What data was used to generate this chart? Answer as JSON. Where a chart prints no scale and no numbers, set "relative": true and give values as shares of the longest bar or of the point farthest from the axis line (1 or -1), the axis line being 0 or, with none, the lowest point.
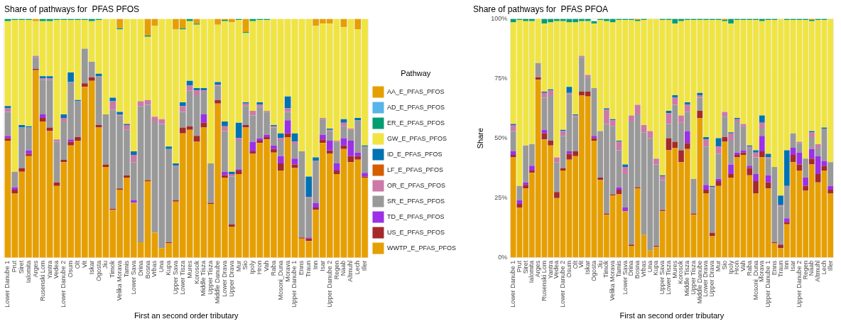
{
  "chart_data": [
    {
      "type": "bar",
      "stacked": true,
      "relative": true,
      "title": "Share of pathways for  PFAS PFOS",
      "xlabel": "First an second order tributary",
      "legend_title": "Pathway",
      "legend": "right",
      "grid": true,
      "categories": [
        "Lower Danube 1",
        "Prut",
        "Siret",
        "Ialomita",
        "Arges",
        "Rusenski Lom",
        "Yantra",
        "Vedea",
        "Lower Danube 2",
        "Osum",
        "Olt",
        "Vit",
        "Iskar",
        "Ogosta",
        "Jiu",
        "Timok",
        "Velika Morava",
        "Tamis",
        "Lower Sava",
        "Drina",
        "Bosna",
        "Vrbas",
        "Una",
        "Kupa",
        "Upper Sava",
        "Lower Tisza",
        "Mures",
        "Korosok",
        "Middle Tisza",
        "Upper Tisza",
        "Middle Danube",
        "Lower Drava",
        "Upper Drava",
        "Mur",
        "Sio",
        "Ipoly",
        "Hron",
        "Vah",
        "Raba",
        "Mosoni_Duna",
        "Morava",
        "Upper Danube 1",
        "Enns",
        "Traun",
        "Inn",
        "Isar",
        "Upper Danube 2",
        "Regen",
        "Naab",
        "Altmuhl",
        "Lech",
        "Iller"
      ],
      "series": [
        {
          "name": "WWTP_E_PFAS_PFOS",
          "color": "#e69f00",
          "values": [
            0.49,
            0.27,
            0.36,
            0.425,
            0.785,
            0.57,
            0.53,
            0.3,
            0.4,
            0.47,
            0.49,
            0.715,
            0.74,
            0.545,
            0.38,
            0.2,
            0.285,
            0.335,
            0.23,
            0.065,
            0.32,
            0.105,
            0.04,
            0.06,
            0.235,
            0.52,
            0.535,
            0.485,
            0.545,
            0.225,
            0.645,
            0.335,
            0.13,
            0.35,
            0.545,
            0.435,
            0.48,
            0.495,
            0.44,
            0.365,
            0.505,
            0.375,
            0.08,
            0.07,
            0.2,
            0.48,
            0.435,
            0.35,
            0.455,
            0.4,
            0.41,
            0.335
          ]
        },
        {
          "name": "US_E_PFAS_PFOS",
          "color": "#a52a2a",
          "values": [
            0.01,
            0.015,
            0.015,
            0.01,
            0.005,
            0.015,
            0.015,
            0.015,
            0.01,
            0.015,
            0.015,
            0.015,
            0.015,
            0.01,
            0.01,
            0.005,
            0.005,
            0.01,
            0,
            0,
            0.005,
            0,
            0,
            0.005,
            0.005,
            0.025,
            0.015,
            0.025,
            0.02,
            0.005,
            0.015,
            0.01,
            0.01,
            0.015,
            0.01,
            0.01,
            0.01,
            0.01,
            0.015,
            0.03,
            0.015,
            0.015,
            0.005,
            0.01,
            0.01,
            0.015,
            0.015,
            0.015,
            0.015,
            0.025,
            0.015,
            0.005
          ]
        },
        {
          "name": "TD_E_PFAS_PFOS",
          "color": "#9b30e6",
          "values": [
            0.01,
            0.01,
            0,
            0.015,
            0,
            0.015,
            0,
            0,
            0,
            0.01,
            0,
            0,
            0,
            0,
            0,
            0,
            0,
            0,
            0.01,
            0,
            0,
            0,
            0,
            0,
            0,
            0,
            0,
            0,
            0.035,
            0,
            0,
            0.015,
            0,
            0.005,
            0,
            0.04,
            0.01,
            0.01,
            0.015,
            0.03,
            0.055,
            0.025,
            0,
            0.005,
            0.02,
            0.02,
            0.04,
            0.03,
            0.03,
            0.065,
            0.015,
            0.015
          ]
        },
        {
          "name": "SR_E_PFAS_PFOS",
          "color": "#999999",
          "values": [
            0.1,
            0.065,
            0.17,
            0.095,
            0.05,
            0.145,
            0.2,
            0.17,
            0.16,
            0.24,
            0.15,
            0.145,
            0.065,
            0.205,
            0.21,
            0.415,
            0.305,
            0.19,
            0.16,
            0.57,
            0.315,
            0.465,
            0.52,
            0.39,
            0.145,
            0.065,
            0.15,
            0.17,
            0.095,
            0.165,
            0.06,
            0.17,
            0.2,
            0.12,
            0.08,
            0.11,
            0.13,
            0.095,
            0.075,
            0.065,
            0.035,
            0.06,
            0.36,
            0.165,
            0.175,
            0.065,
            0.04,
            0.09,
            0.05,
            0.045,
            0.135,
            0.11
          ]
        },
        {
          "name": "OR_E_PFAS_PFOS",
          "color": "#cc79a7",
          "values": [
            0.015,
            0,
            0,
            0,
            0.005,
            0.005,
            0.005,
            0.01,
            0.015,
            0,
            0,
            0,
            0,
            0,
            0,
            0.035,
            0.005,
            0.02,
            0.03,
            0.02,
            0.02,
            0.02,
            0.02,
            0,
            0,
            0.025,
            0.02,
            0.02,
            0.005,
            0,
            0.005,
            0.02,
            0.01,
            0.01,
            0.01,
            0.02,
            0.01,
            0.005,
            0.005,
            0.01,
            0.015,
            0.01,
            0,
            0.005,
            0,
            0.005,
            0.005,
            0.005,
            0.015,
            0.005,
            0,
            0
          ]
        },
        {
          "name": "LF_E_PFAS_PFOS",
          "color": "#d55e00",
          "values": [
            0,
            0,
            0,
            0,
            0,
            0,
            0,
            0,
            0,
            0,
            0,
            0,
            0,
            0,
            0,
            0,
            0,
            0,
            0,
            0,
            0,
            0,
            0,
            0,
            0,
            0,
            0,
            0,
            0,
            0,
            0,
            0,
            0,
            0,
            0,
            0,
            0,
            0,
            0,
            0,
            0,
            0,
            0,
            0,
            0,
            0,
            0,
            0,
            0,
            0,
            0,
            0
          ]
        },
        {
          "name": "ID_E_PFAS_PFOS",
          "color": "#0072b2",
          "values": [
            0.01,
            0,
            0.01,
            0.005,
            0,
            0.01,
            0.01,
            0,
            0.015,
            0.04,
            0.005,
            0,
            0,
            0.01,
            0,
            0.015,
            0.01,
            0.005,
            0.015,
            0,
            0,
            0,
            0,
            0.01,
            0.01,
            0.015,
            0.02,
            0.01,
            0.01,
            0,
            0.01,
            0.02,
            0.01,
            0.065,
            0.005,
            0,
            0.01,
            0,
            0.005,
            0.02,
            0.05,
            0.035,
            0,
            0.085,
            0.015,
            0,
            0.005,
            0,
            0.015,
            0,
            0.01,
            0.005
          ]
        },
        {
          "name": "GW_E_PFAS_PFOS",
          "color": "#f0e442",
          "values": [
            0.355,
            0.635,
            0.44,
            0.445,
            0.145,
            0.23,
            0.23,
            0.5,
            0.395,
            0.22,
            0.335,
            0.12,
            0.17,
            0.225,
            0.4,
            0.33,
            0.345,
            0.44,
            0.555,
            0.345,
            0.265,
            0.38,
            0.42,
            0.535,
            0.56,
            0.305,
            0.25,
            0.265,
            0.29,
            0.605,
            0.24,
            0.42,
            0.625,
            0.43,
            0.29,
            0.375,
            0.345,
            0.38,
            0.445,
            0.48,
            0.325,
            0.48,
            0.555,
            0.66,
            0.55,
            0.395,
            0.44,
            0.51,
            0.385,
            0.46,
            0.37,
            0.53
          ]
        },
        {
          "name": "ER_E_PFAS_PFOS",
          "color": "#009e73",
          "values": [
            0.01,
            0.005,
            0.005,
            0.005,
            0,
            0.01,
            0.01,
            0.005,
            0.005,
            0.005,
            0.005,
            0.005,
            0.01,
            0.005,
            0,
            0,
            0.005,
            0,
            0,
            0,
            0.005,
            0,
            0,
            0,
            0,
            0.005,
            0.01,
            0.005,
            0,
            0,
            0,
            0.005,
            0,
            0.005,
            0.005,
            0.01,
            0.005,
            0.005,
            0,
            0,
            0,
            0,
            0,
            0,
            0,
            0,
            0,
            0,
            0,
            0,
            0,
            0
          ]
        },
        {
          "name": "AD_E_PFAS_PFOS",
          "color": "#56b4e9",
          "values": [
            0,
            0,
            0,
            0,
            0,
            0,
            0,
            0,
            0,
            0,
            0,
            0,
            0,
            0,
            0,
            0,
            0,
            0,
            0,
            0,
            0,
            0,
            0,
            0,
            0,
            0,
            0,
            0,
            0,
            0,
            0,
            0,
            0,
            0,
            0,
            0,
            0,
            0,
            0,
            0,
            0,
            0,
            0,
            0,
            0,
            0,
            0,
            0,
            0,
            0,
            0,
            0
          ]
        },
        {
          "name": "AA_E_PFAS_PFOS",
          "color": "#e69f00",
          "values": [
            0,
            0,
            0,
            0,
            0.01,
            0,
            0,
            0,
            0,
            0,
            0,
            0,
            0,
            0,
            0,
            0,
            0.04,
            0,
            0,
            0,
            0.07,
            0.03,
            0,
            0,
            0.045,
            0.04,
            0,
            0.02,
            0,
            0,
            0.025,
            0.005,
            0.015,
            0,
            0.055,
            0,
            0,
            0,
            0,
            0,
            0,
            0,
            0,
            0,
            0.03,
            0.02,
            0.02,
            0,
            0.035,
            0,
            0.045,
            0
          ]
        }
      ]
    },
    {
      "type": "bar",
      "stacked": true,
      "title": "Share of pathways for  PFAS PFOA",
      "xlabel": "First an second order tributary",
      "ylabel": "Share",
      "grid": true,
      "ylim": [
        0,
        100
      ],
      "yticks": [
        {
          "value": 0,
          "label": "0%"
        },
        {
          "value": 25,
          "label": "25%"
        },
        {
          "value": 50,
          "label": "50%"
        },
        {
          "value": 75,
          "label": "75%"
        },
        {
          "value": 100,
          "label": "100%"
        }
      ],
      "categories": [
        "Lower Danube 1",
        "Prut",
        "Siret",
        "Ialomita",
        "Arges",
        "Rusenski Lom",
        "Yantra",
        "Vedea",
        "Lower Danube 2",
        "Osum",
        "Olt",
        "Vit",
        "Iskar",
        "Ogosta",
        "Jiu",
        "Timok",
        "Velika Morava",
        "Tamis",
        "Lower Sava",
        "Drina",
        "Bosna",
        "Vrbas",
        "Una",
        "Kupa",
        "Upper Sava",
        "Lower Tisza",
        "Mures",
        "Korosok",
        "Middle Tisza",
        "Upper Tisza",
        "Middle Danube",
        "Lower Drava",
        "Upper Drava",
        "Mur",
        "Sio",
        "Ipoly",
        "Hron",
        "Vah",
        "Raba",
        "Mosoni_Duna",
        "Morava",
        "Upper Danube 1",
        "Enns",
        "Traun",
        "Inn",
        "Isar",
        "Upper Danube 2",
        "Regen",
        "Naab",
        "Altmuhl",
        "Lech",
        "Iller"
      ],
      "series": [
        {
          "color": "#e69f00",
          "values": [
            42,
            21,
            29,
            35.5,
            74.5,
            49.5,
            47,
            25,
            36.5,
            41,
            42.5,
            68,
            67.5,
            49,
            32.5,
            18,
            26,
            26.5,
            19.5,
            5,
            29,
            9.5,
            3,
            4.5,
            19.5,
            45,
            46,
            40,
            45.5,
            18,
            58.5,
            27,
            9,
            30,
            48.5,
            33.5,
            42,
            43,
            34.5,
            27,
            42,
            29,
            6,
            4,
            14,
            40,
            36.5,
            28,
            39,
            31.5,
            36.5,
            27
          ]
        },
        {
          "color": "#a52a2a",
          "values": [
            1,
            1.5,
            1.5,
            1,
            1,
            2.5,
            2,
            2.5,
            1,
            2.5,
            2,
            1.5,
            2,
            1,
            1,
            0.5,
            0.5,
            2,
            0,
            0.5,
            0.5,
            0,
            0,
            0.5,
            0.5,
            5,
            2.5,
            5,
            2.5,
            0.5,
            3,
            1.5,
            1.5,
            2,
            2,
            1.5,
            1,
            1,
            3,
            5,
            2.5,
            2.5,
            0.5,
            1.5,
            1,
            3,
            2.5,
            2,
            2.5,
            3.5,
            2,
            1.5
          ]
        },
        {
          "color": "#9b30e6",
          "values": [
            1.5,
            1.5,
            1,
            2,
            0,
            1.5,
            0,
            0,
            0,
            1,
            0,
            0,
            0,
            1,
            0,
            0,
            0,
            1,
            1.5,
            0,
            0,
            0,
            0,
            0,
            0,
            0,
            0,
            0,
            5,
            0,
            0,
            2,
            0,
            1,
            0,
            4,
            1,
            1,
            1,
            3,
            6.5,
            3,
            0,
            0,
            1.5,
            3,
            5,
            3.5,
            4,
            7.5,
            2,
            1.5
          ]
        },
        {
          "color": "#999999",
          "values": [
            8.5,
            6,
            15.5,
            9,
            6,
            13.5,
            19,
            12.5,
            13.5,
            24,
            14.5,
            14.5,
            6,
            20,
            19.5,
            37.5,
            28.5,
            15.5,
            14,
            51.5,
            30.5,
            43,
            47,
            34,
            12.5,
            6,
            15.5,
            11.5,
            8,
            14.5,
            5.5,
            16,
            18.5,
            10.5,
            8.5,
            10,
            13,
            10,
            7.5,
            7,
            3,
            7,
            31.5,
            16,
            13.5,
            6,
            4,
            8,
            5,
            3.5,
            13.5,
            10
          ]
        },
        {
          "color": "#cc79a7",
          "values": [
            2.5,
            0,
            0,
            0,
            0,
            2,
            2,
            2,
            2,
            0.5,
            0.5,
            0.5,
            1,
            0,
            0,
            6,
            2.5,
            3.5,
            3,
            2.5,
            4,
            3,
            3,
            2.5,
            1.5,
            4.5,
            3,
            3,
            3,
            0,
            1,
            3,
            0.5,
            3,
            2,
            3,
            1,
            1,
            0.5,
            2,
            2.5,
            0.5,
            0,
            0.5,
            0,
            0,
            0.5,
            0,
            2,
            1.5,
            0,
            0
          ]
        },
        {
          "color": "#0072b2",
          "values": [
            0.5,
            0,
            0,
            0,
            0,
            0.5,
            0.5,
            0,
            0.5,
            2.5,
            0.5,
            0,
            0,
            0,
            0,
            0.5,
            0.5,
            0.5,
            1,
            0,
            0,
            0,
            0,
            0,
            0.5,
            1,
            1,
            0,
            1,
            0,
            1,
            1,
            0.5,
            3.5,
            0,
            0.5,
            0.5,
            0,
            0.5,
            1,
            3,
            1.5,
            0,
            4,
            15,
            0,
            0,
            0,
            0.5,
            0,
            0.5,
            0
          ]
        },
        {
          "color": "#f0e442",
          "values": [
            42.5,
            69.5,
            52,
            51.5,
            18.5,
            28.5,
            28,
            57,
            45.5,
            27,
            38.5,
            14.5,
            22.5,
            27,
            46.5,
            36.5,
            40.5,
            50.5,
            60.5,
            40,
            35,
            44,
            47,
            58.5,
            65,
            38,
            30,
            39.5,
            34.5,
            66.5,
            30.5,
            49,
            69.5,
            49.5,
            38,
            45.5,
            41,
            43.5,
            52.5,
            54.5,
            39.5,
            56,
            61.5,
            74,
            54.5,
            47.5,
            51,
            58,
            46,
            52,
            45,
            60
          ]
        },
        {
          "color": "#009e73",
          "values": [
            1.5,
            0.5,
            1,
            1,
            0,
            2,
            1.5,
            1,
            1,
            1.5,
            1.5,
            1,
            1,
            1,
            0.5,
            1,
            1.5,
            0.5,
            0.5,
            0.5,
            0.5,
            0.5,
            0,
            0,
            0.5,
            0.5,
            2,
            1,
            0.5,
            0.5,
            0.5,
            0.5,
            0.5,
            0.5,
            0.5,
            2,
            0.5,
            0.5,
            0.5,
            0.5,
            1,
            0.5,
            0.5,
            0,
            0.5,
            0.5,
            0.5,
            0.5,
            0.5,
            0.5,
            0.5,
            0
          ]
        },
        {
          "color": "#e69f00",
          "values": [
            0,
            0,
            0,
            0,
            0,
            0,
            0,
            0,
            0,
            0,
            0,
            0,
            0,
            0,
            0,
            0,
            0,
            0,
            0,
            0,
            0.5,
            0,
            0,
            0,
            0,
            0,
            0,
            0,
            0,
            0,
            0,
            0,
            0,
            0,
            0.5,
            0,
            0,
            0,
            0,
            0,
            0,
            0,
            0,
            0,
            0,
            0,
            0,
            0,
            0.5,
            0,
            0,
            0
          ]
        }
      ]
    }
  ]
}
